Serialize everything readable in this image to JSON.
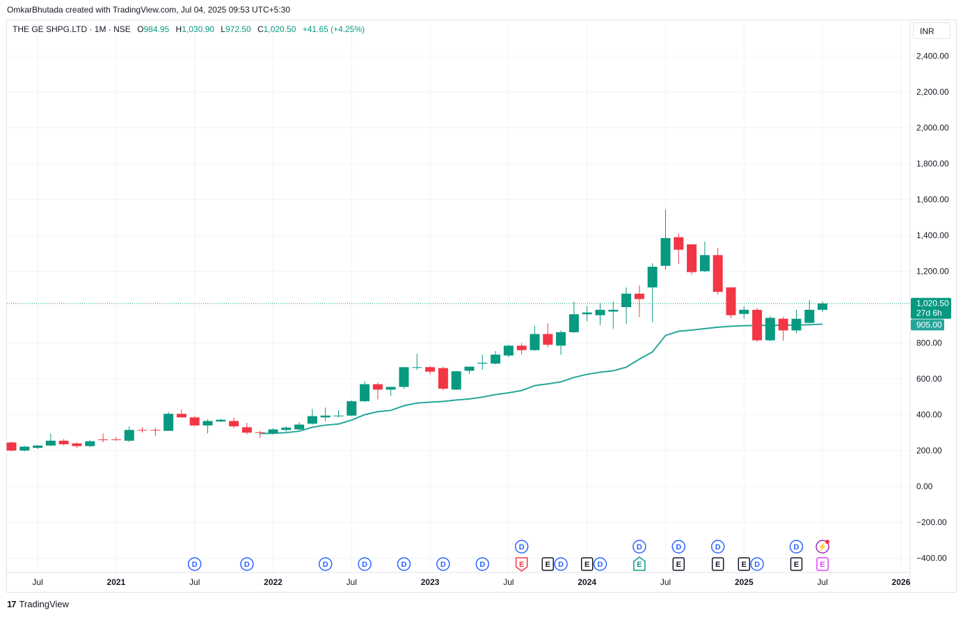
{
  "credit": "OmkarBhutada created with TradingView.com, Jul 04, 2025 09:53 UTC+5:30",
  "legend": {
    "symbol": "THE GE SHPG.LTD · 1M · NSE",
    "open_label": "O",
    "open": "984.95",
    "high_label": "H",
    "high": "1,030.90",
    "low_label": "L",
    "low": "972.50",
    "close_label": "C",
    "close": "1,020.50",
    "change": "+41.65 (+4.25%)"
  },
  "currency": "INR",
  "footer": {
    "logo_mark": "17",
    "brand": "TradingView"
  },
  "colors": {
    "up": "#089981",
    "down": "#f23645",
    "ma": "#26a69a",
    "grid": "#f0f3fa",
    "dividend": "#2962ff",
    "earnings": "#131722",
    "earnings_up": "#089981",
    "earnings_down": "#f23645",
    "earnings_future": "#e040fb"
  },
  "chart_data": {
    "type": "candlestick",
    "interval": "1M",
    "y_axis": {
      "min": -400,
      "max": 2400,
      "ticks": [
        2400,
        2200,
        2000,
        1800,
        1600,
        1400,
        1200,
        1000,
        800,
        600,
        400,
        200,
        0,
        -200,
        -400
      ],
      "tick_labels": [
        "2,400.00",
        "2,200.00",
        "2,000.00",
        "1,800.00",
        "1,600.00",
        "1,400.00",
        "1,200.00",
        "",
        "800.00",
        "600.00",
        "400.00",
        "200.00",
        "0.00",
        "−200.00",
        "−400.00"
      ]
    },
    "x_axis": {
      "labels": [
        {
          "label": "Jul",
          "idx": 2,
          "bold": false
        },
        {
          "label": "2021",
          "idx": 8,
          "bold": true
        },
        {
          "label": "Jul",
          "idx": 14,
          "bold": false
        },
        {
          "label": "2022",
          "idx": 20,
          "bold": true
        },
        {
          "label": "Jul",
          "idx": 26,
          "bold": false
        },
        {
          "label": "2023",
          "idx": 32,
          "bold": true
        },
        {
          "label": "Jul",
          "idx": 38,
          "bold": false
        },
        {
          "label": "2024",
          "idx": 44,
          "bold": true
        },
        {
          "label": "Jul",
          "idx": 50,
          "bold": false
        },
        {
          "label": "2025",
          "idx": 56,
          "bold": true
        },
        {
          "label": "Jul",
          "idx": 62,
          "bold": false
        },
        {
          "label": "2026",
          "idx": 68,
          "bold": true
        }
      ]
    },
    "candles": [
      {
        "o": 245,
        "h": 250,
        "l": 195,
        "c": 200
      },
      {
        "o": 200,
        "h": 225,
        "l": 195,
        "c": 222
      },
      {
        "o": 215,
        "h": 232,
        "l": 208,
        "c": 228
      },
      {
        "o": 228,
        "h": 295,
        "l": 225,
        "c": 255
      },
      {
        "o": 255,
        "h": 265,
        "l": 228,
        "c": 235
      },
      {
        "o": 240,
        "h": 245,
        "l": 215,
        "c": 225
      },
      {
        "o": 225,
        "h": 258,
        "l": 220,
        "c": 252
      },
      {
        "o": 262,
        "h": 295,
        "l": 245,
        "c": 258
      },
      {
        "o": 262,
        "h": 275,
        "l": 255,
        "c": 260
      },
      {
        "o": 255,
        "h": 335,
        "l": 248,
        "c": 315
      },
      {
        "o": 315,
        "h": 330,
        "l": 300,
        "c": 312
      },
      {
        "o": 315,
        "h": 328,
        "l": 280,
        "c": 312
      },
      {
        "o": 310,
        "h": 415,
        "l": 312,
        "c": 405
      },
      {
        "o": 405,
        "h": 430,
        "l": 385,
        "c": 385
      },
      {
        "o": 385,
        "h": 392,
        "l": 335,
        "c": 340
      },
      {
        "o": 340,
        "h": 375,
        "l": 295,
        "c": 365
      },
      {
        "o": 362,
        "h": 378,
        "l": 360,
        "c": 372
      },
      {
        "o": 365,
        "h": 385,
        "l": 325,
        "c": 335
      },
      {
        "o": 330,
        "h": 355,
        "l": 290,
        "c": 300
      },
      {
        "o": 302,
        "h": 310,
        "l": 270,
        "c": 300
      },
      {
        "o": 298,
        "h": 325,
        "l": 290,
        "c": 318
      },
      {
        "o": 315,
        "h": 335,
        "l": 305,
        "c": 328
      },
      {
        "o": 318,
        "h": 358,
        "l": 315,
        "c": 345
      },
      {
        "o": 350,
        "h": 432,
        "l": 345,
        "c": 392
      },
      {
        "o": 385,
        "h": 440,
        "l": 362,
        "c": 395
      },
      {
        "o": 395,
        "h": 425,
        "l": 385,
        "c": 395
      },
      {
        "o": 395,
        "h": 480,
        "l": 392,
        "c": 475
      },
      {
        "o": 475,
        "h": 585,
        "l": 470,
        "c": 570
      },
      {
        "o": 570,
        "h": 580,
        "l": 485,
        "c": 540
      },
      {
        "o": 540,
        "h": 555,
        "l": 505,
        "c": 555
      },
      {
        "o": 555,
        "h": 650,
        "l": 545,
        "c": 665
      },
      {
        "o": 665,
        "h": 740,
        "l": 650,
        "c": 665
      },
      {
        "o": 665,
        "h": 672,
        "l": 625,
        "c": 640
      },
      {
        "o": 660,
        "h": 668,
        "l": 535,
        "c": 545
      },
      {
        "o": 540,
        "h": 645,
        "l": 538,
        "c": 642
      },
      {
        "o": 645,
        "h": 668,
        "l": 628,
        "c": 668
      },
      {
        "o": 685,
        "h": 735,
        "l": 650,
        "c": 690
      },
      {
        "o": 685,
        "h": 755,
        "l": 680,
        "c": 735
      },
      {
        "o": 730,
        "h": 790,
        "l": 720,
        "c": 785
      },
      {
        "o": 785,
        "h": 800,
        "l": 735,
        "c": 760
      },
      {
        "o": 760,
        "h": 895,
        "l": 758,
        "c": 850
      },
      {
        "o": 850,
        "h": 910,
        "l": 775,
        "c": 790
      },
      {
        "o": 785,
        "h": 870,
        "l": 735,
        "c": 860
      },
      {
        "o": 860,
        "h": 1030,
        "l": 855,
        "c": 960
      },
      {
        "o": 960,
        "h": 1005,
        "l": 920,
        "c": 970
      },
      {
        "o": 955,
        "h": 1025,
        "l": 900,
        "c": 985
      },
      {
        "o": 975,
        "h": 1030,
        "l": 880,
        "c": 985
      },
      {
        "o": 1000,
        "h": 1110,
        "l": 905,
        "c": 1075
      },
      {
        "o": 1075,
        "h": 1120,
        "l": 945,
        "c": 1045
      },
      {
        "o": 1110,
        "h": 1245,
        "l": 915,
        "c": 1225
      },
      {
        "o": 1230,
        "h": 1545,
        "l": 1210,
        "c": 1385
      },
      {
        "o": 1390,
        "h": 1410,
        "l": 1240,
        "c": 1320
      },
      {
        "o": 1350,
        "h": 1345,
        "l": 1180,
        "c": 1195
      },
      {
        "o": 1200,
        "h": 1365,
        "l": 1195,
        "c": 1290
      },
      {
        "o": 1290,
        "h": 1330,
        "l": 1070,
        "c": 1085
      },
      {
        "o": 1110,
        "h": 1110,
        "l": 940,
        "c": 955
      },
      {
        "o": 962,
        "h": 1005,
        "l": 935,
        "c": 985
      },
      {
        "o": 985,
        "h": 995,
        "l": 808,
        "c": 815
      },
      {
        "o": 815,
        "h": 950,
        "l": 810,
        "c": 940
      },
      {
        "o": 935,
        "h": 945,
        "l": 812,
        "c": 870
      },
      {
        "o": 870,
        "h": 985,
        "l": 855,
        "c": 935
      },
      {
        "o": 912,
        "h": 1040,
        "l": 910,
        "c": 985
      },
      {
        "o": 985,
        "h": 1031,
        "l": 972,
        "c": 1020
      }
    ],
    "moving_average": [
      {
        "idx": 19,
        "v": 295
      },
      {
        "idx": 20,
        "v": 296
      },
      {
        "idx": 21,
        "v": 300
      },
      {
        "idx": 22,
        "v": 308
      },
      {
        "idx": 23,
        "v": 330
      },
      {
        "idx": 24,
        "v": 342
      },
      {
        "idx": 25,
        "v": 348
      },
      {
        "idx": 26,
        "v": 370
      },
      {
        "idx": 27,
        "v": 400
      },
      {
        "idx": 28,
        "v": 417
      },
      {
        "idx": 29,
        "v": 424
      },
      {
        "idx": 30,
        "v": 450
      },
      {
        "idx": 31,
        "v": 465
      },
      {
        "idx": 32,
        "v": 470
      },
      {
        "idx": 33,
        "v": 474
      },
      {
        "idx": 34,
        "v": 482
      },
      {
        "idx": 35,
        "v": 488
      },
      {
        "idx": 36,
        "v": 498
      },
      {
        "idx": 37,
        "v": 512
      },
      {
        "idx": 38,
        "v": 522
      },
      {
        "idx": 39,
        "v": 535
      },
      {
        "idx": 40,
        "v": 562
      },
      {
        "idx": 41,
        "v": 572
      },
      {
        "idx": 42,
        "v": 583
      },
      {
        "idx": 43,
        "v": 608
      },
      {
        "idx": 44,
        "v": 625
      },
      {
        "idx": 45,
        "v": 637
      },
      {
        "idx": 46,
        "v": 645
      },
      {
        "idx": 47,
        "v": 665
      },
      {
        "idx": 48,
        "v": 710
      },
      {
        "idx": 49,
        "v": 750
      },
      {
        "idx": 50,
        "v": 842
      },
      {
        "idx": 51,
        "v": 865
      },
      {
        "idx": 52,
        "v": 872
      },
      {
        "idx": 53,
        "v": 880
      },
      {
        "idx": 54,
        "v": 888
      },
      {
        "idx": 55,
        "v": 893
      },
      {
        "idx": 56,
        "v": 896
      },
      {
        "idx": 57,
        "v": 898
      },
      {
        "idx": 58,
        "v": 898
      },
      {
        "idx": 59,
        "v": 899
      },
      {
        "idx": 60,
        "v": 900
      },
      {
        "idx": 61,
        "v": 902
      },
      {
        "idx": 62,
        "v": 905
      }
    ],
    "price_label": {
      "value": 1020.5,
      "text": "1,020.50",
      "countdown": "27d 6h"
    },
    "ma_label": {
      "value": 905,
      "text": "905.00"
    },
    "events": [
      {
        "idx": 14,
        "row": 1,
        "letter": "D",
        "kind": "dividend"
      },
      {
        "idx": 18,
        "row": 1,
        "letter": "D",
        "kind": "dividend"
      },
      {
        "idx": 24,
        "row": 1,
        "letter": "D",
        "kind": "dividend"
      },
      {
        "idx": 27,
        "row": 1,
        "letter": "D",
        "kind": "dividend"
      },
      {
        "idx": 30,
        "row": 1,
        "letter": "D",
        "kind": "dividend"
      },
      {
        "idx": 33,
        "row": 1,
        "letter": "D",
        "kind": "dividend"
      },
      {
        "idx": 36,
        "row": 1,
        "letter": "D",
        "kind": "dividend"
      },
      {
        "idx": 39,
        "row": 0,
        "letter": "D",
        "kind": "dividend"
      },
      {
        "idx": 39,
        "row": 1,
        "letter": "E",
        "kind": "earnings_down"
      },
      {
        "idx": 41,
        "row": 1,
        "letter": "E",
        "kind": "earnings"
      },
      {
        "idx": 42,
        "row": 1,
        "letter": "D",
        "kind": "dividend"
      },
      {
        "idx": 44,
        "row": 1,
        "letter": "E",
        "kind": "earnings"
      },
      {
        "idx": 45,
        "row": 1,
        "letter": "D",
        "kind": "dividend"
      },
      {
        "idx": 48,
        "row": 0,
        "letter": "D",
        "kind": "dividend"
      },
      {
        "idx": 48,
        "row": 1,
        "letter": "E",
        "kind": "earnings_up"
      },
      {
        "idx": 51,
        "row": 0,
        "letter": "D",
        "kind": "dividend"
      },
      {
        "idx": 51,
        "row": 1,
        "letter": "E",
        "kind": "earnings"
      },
      {
        "idx": 54,
        "row": 0,
        "letter": "D",
        "kind": "dividend"
      },
      {
        "idx": 54,
        "row": 1,
        "letter": "E",
        "kind": "earnings"
      },
      {
        "idx": 56,
        "row": 1,
        "letter": "E",
        "kind": "earnings"
      },
      {
        "idx": 57,
        "row": 1,
        "letter": "D",
        "kind": "dividend"
      },
      {
        "idx": 60,
        "row": 0,
        "letter": "D",
        "kind": "dividend"
      },
      {
        "idx": 60,
        "row": 1,
        "letter": "E",
        "kind": "earnings"
      },
      {
        "idx": 62,
        "row": 0,
        "letter": "⚡",
        "kind": "split"
      },
      {
        "idx": 62,
        "row": 1,
        "letter": "E",
        "kind": "earnings_future"
      }
    ]
  }
}
